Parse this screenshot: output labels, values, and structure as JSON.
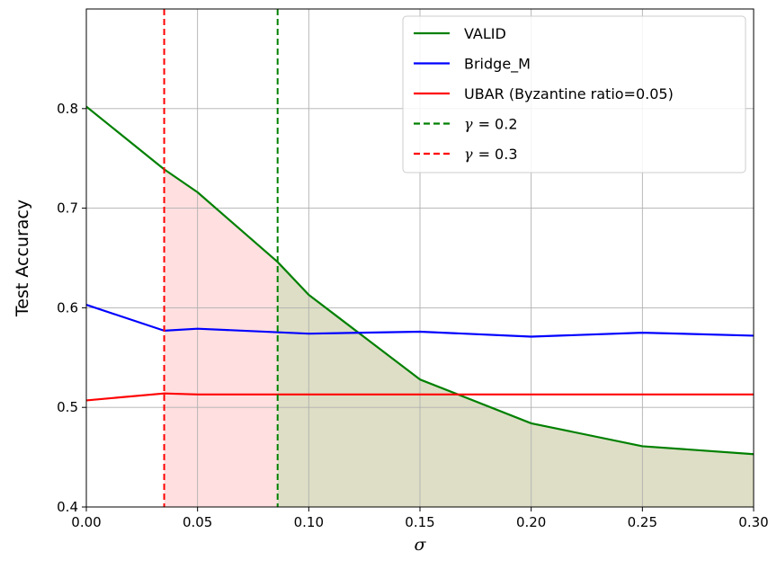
{
  "chart_data": {
    "type": "line",
    "title": "",
    "xlabel": "σ",
    "ylabel": "Test Accuracy",
    "xlim": [
      0.0,
      0.3
    ],
    "ylim": [
      0.4,
      0.9
    ],
    "grid": true,
    "legend_position": "top-right",
    "x_ticks": [
      "0.00",
      "0.05",
      "0.10",
      "0.15",
      "0.20",
      "0.25",
      "0.30"
    ],
    "x_tick_values": [
      0.0,
      0.05,
      0.1,
      0.15,
      0.2,
      0.25,
      0.3
    ],
    "y_ticks": [
      "0.4",
      "0.5",
      "0.6",
      "0.7",
      "0.8"
    ],
    "y_tick_values": [
      0.4,
      0.5,
      0.6,
      0.7,
      0.8
    ],
    "series": [
      {
        "name": "VALID",
        "color": "#008000",
        "style": "solid",
        "x": [
          0.0,
          0.035,
          0.05,
          0.086,
          0.1,
          0.15,
          0.2,
          0.25,
          0.3
        ],
        "y": [
          0.802,
          0.739,
          0.716,
          0.646,
          0.613,
          0.528,
          0.484,
          0.461,
          0.453
        ]
      },
      {
        "name": "Bridge_M",
        "color": "#0000ff",
        "style": "solid",
        "x": [
          0.0,
          0.035,
          0.05,
          0.1,
          0.15,
          0.2,
          0.25,
          0.3
        ],
        "y": [
          0.603,
          0.577,
          0.579,
          0.574,
          0.576,
          0.571,
          0.575,
          0.572
        ]
      },
      {
        "name": "UBAR (Byzantine ratio=0.05)",
        "color": "#ff0000",
        "style": "solid",
        "x": [
          0.0,
          0.035,
          0.05,
          0.1,
          0.15,
          0.2,
          0.25,
          0.3
        ],
        "y": [
          0.507,
          0.514,
          0.513,
          0.513,
          0.513,
          0.513,
          0.513,
          0.513
        ]
      }
    ],
    "vlines": [
      {
        "name": "γ = 0.2",
        "symbol": "γ",
        "value_text": "= 0.2",
        "x": 0.086,
        "color": "#008000",
        "style": "dashed"
      },
      {
        "name": "γ = 0.3",
        "symbol": "γ",
        "value_text": "= 0.3",
        "x": 0.035,
        "color": "#ff0000",
        "style": "dashed"
      }
    ],
    "shaded_regions": [
      {
        "x_from": 0.035,
        "x_to": 0.086,
        "color": "#ffdfe0",
        "under": "VALID"
      },
      {
        "x_from": 0.086,
        "x_to": 0.3,
        "color": "#dedec6",
        "under": "VALID"
      }
    ]
  }
}
